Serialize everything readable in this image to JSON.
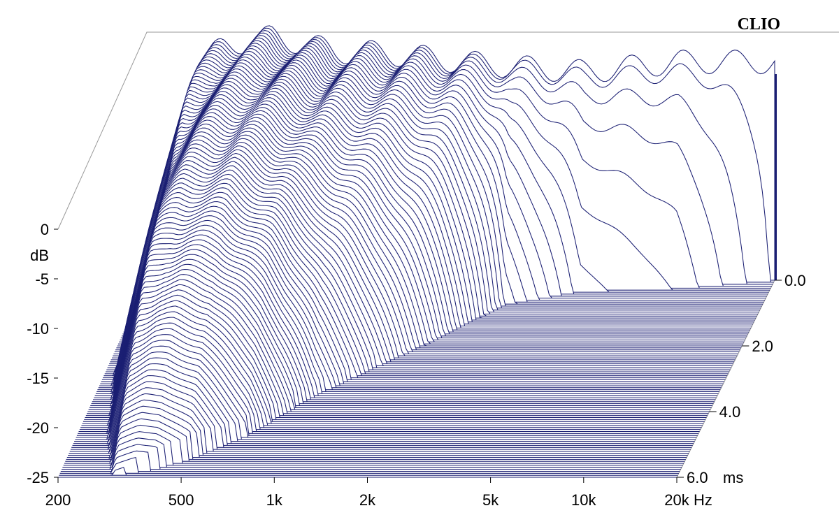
{
  "brand": "CLIO",
  "chart_data": {
    "type": "waterfall",
    "y_axis": {
      "unit": "dB",
      "ticks": [
        0,
        -5,
        -10,
        -15,
        -20,
        -25
      ],
      "ylim": [
        -25,
        0
      ]
    },
    "x_axis": {
      "scale": "log",
      "unit": "Hz",
      "tick_labels": [
        "200",
        "500",
        "1k",
        "2k",
        "5k",
        "10k",
        "20k"
      ],
      "tick_values": [
        200,
        500,
        1000,
        2000,
        5000,
        10000,
        20000
      ],
      "xlim": [
        200,
        20000
      ]
    },
    "z_axis": {
      "unit": "ms",
      "tick_labels": [
        "0.0",
        "2.0",
        "4.0",
        "6.0"
      ],
      "tick_values": [
        0,
        2,
        4,
        6
      ],
      "zlim": [
        0,
        6
      ]
    },
    "slice_count": 100,
    "line_color": "#1b1f73",
    "floor_db": -25,
    "initial_response_db": [
      [
        200,
        -25
      ],
      [
        250,
        -12
      ],
      [
        300,
        -3
      ],
      [
        350,
        -1.5
      ],
      [
        400,
        -1
      ],
      [
        500,
        -0.5
      ],
      [
        600,
        -1
      ],
      [
        700,
        -1.5
      ],
      [
        800,
        -2
      ],
      [
        1000,
        -2
      ],
      [
        1500,
        -2.5
      ],
      [
        2000,
        -3
      ],
      [
        3000,
        -3.5
      ],
      [
        5000,
        -4
      ],
      [
        7000,
        -3.5
      ],
      [
        10000,
        -3
      ],
      [
        15000,
        -3
      ],
      [
        20000,
        -3
      ]
    ],
    "decay_ms_at_frequency": [
      [
        200,
        6
      ],
      [
        250,
        6
      ],
      [
        300,
        6
      ],
      [
        400,
        5.8
      ],
      [
        500,
        5.5
      ],
      [
        700,
        4.8
      ],
      [
        1000,
        3.6
      ],
      [
        1500,
        2.6
      ],
      [
        2000,
        1.9
      ],
      [
        3000,
        0.8
      ],
      [
        5000,
        0.4
      ],
      [
        10000,
        0.3
      ],
      [
        20000,
        0.05
      ]
    ]
  }
}
